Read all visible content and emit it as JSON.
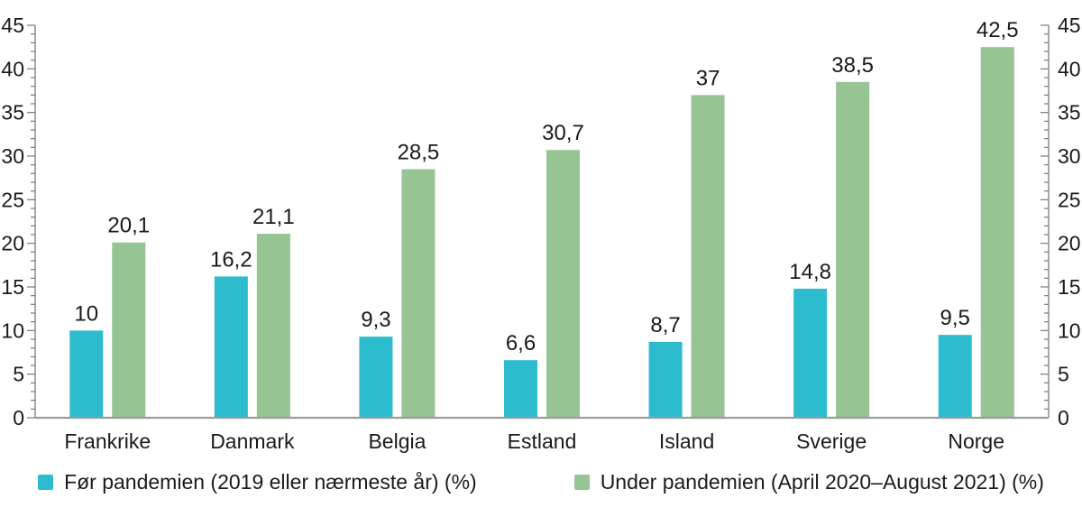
{
  "chart_data": {
    "type": "bar",
    "title": "",
    "xlabel": "",
    "ylabel": "",
    "categories": [
      "Frankrike",
      "Danmark",
      "Belgia",
      "Estland",
      "Island",
      "Sverige",
      "Norge"
    ],
    "series": [
      {
        "name": "Før pandemien (2019 eller nærmeste år) (%)",
        "color": "#2cbcce",
        "values": [
          10,
          16.2,
          9.3,
          6.6,
          8.7,
          14.8,
          9.5
        ],
        "labels": [
          "10",
          "16,2",
          "9,3",
          "6,6",
          "8,7",
          "14,8",
          "9,5"
        ]
      },
      {
        "name": "Under pandemien (April 2020–August 2021) (%)",
        "color": "#97c493",
        "values": [
          20.1,
          21.1,
          28.5,
          30.7,
          37,
          38.5,
          42.5
        ],
        "labels": [
          "20,1",
          "21,1",
          "28,5",
          "30,7",
          "37",
          "38,5",
          "42,5"
        ]
      }
    ],
    "ylim": [
      0,
      45
    ],
    "y_major_step": 5,
    "y_minor_step": 1,
    "y_tick_labels": [
      "0",
      "5",
      "10",
      "15",
      "20",
      "25",
      "30",
      "35",
      "40",
      "45"
    ],
    "grid": false,
    "axes": "left-and-right",
    "legend_position": "bottom",
    "decimal_separator": ",",
    "colors": {
      "axis": "#7a7a7a",
      "baseline": "#9c9c9c",
      "text": "#1a1a1a"
    }
  }
}
